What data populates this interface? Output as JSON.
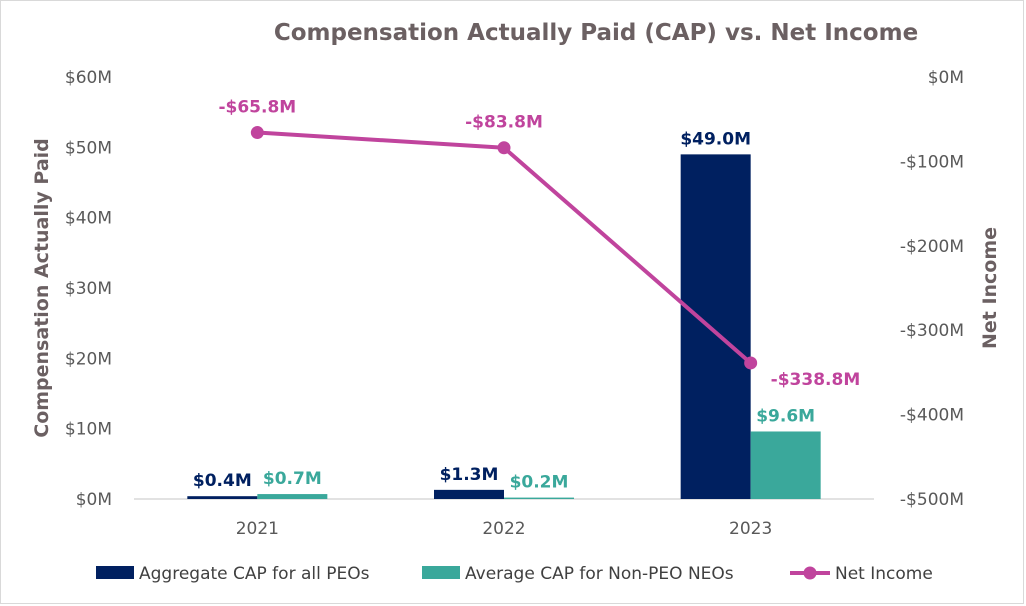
{
  "chart_data": {
    "type": "bar",
    "title": "Compensation Actually Paid (CAP) vs. Net Income",
    "categories": [
      "2021",
      "2022",
      "2023"
    ],
    "y_left": {
      "label": "Compensation Actually Paid",
      "range": [
        0,
        60
      ],
      "ticks": [
        0,
        10,
        20,
        30,
        40,
        50,
        60
      ],
      "tick_labels": [
        "$0M",
        "$10M",
        "$20M",
        "$30M",
        "$40M",
        "$50M",
        "$60M"
      ]
    },
    "y_right": {
      "label": "Net Income",
      "range": [
        -500,
        0
      ],
      "ticks": [
        0,
        -100,
        -200,
        -300,
        -400,
        -500
      ],
      "tick_labels": [
        "$0M",
        "-$100M",
        "-$200M",
        "-$300M",
        "-$400M",
        "-$500M"
      ]
    },
    "series": [
      {
        "name": "Aggregate CAP for all PEOs",
        "type": "bar",
        "axis": "left",
        "color": "#002060",
        "label_color": "#002060",
        "values": [
          0.4,
          1.3,
          49.0
        ],
        "labels": [
          "$0.4M",
          "$1.3M",
          "$49.0M"
        ]
      },
      {
        "name": "Average CAP for Non-PEO NEOs",
        "type": "bar",
        "axis": "left",
        "color": "#3aa89b",
        "label_color": "#3aa89b",
        "values": [
          0.7,
          0.2,
          9.6
        ],
        "labels": [
          "$0.7M",
          "$0.2M",
          "$9.6M"
        ]
      },
      {
        "name": "Net Income",
        "type": "line",
        "axis": "right",
        "color": "#c0449d",
        "label_color": "#c0449d",
        "values": [
          -65.8,
          -83.8,
          -338.8
        ],
        "labels": [
          "-$65.8M",
          "-$83.8M",
          "-$338.8M"
        ]
      }
    ],
    "grid": false,
    "legend": "bottom"
  }
}
